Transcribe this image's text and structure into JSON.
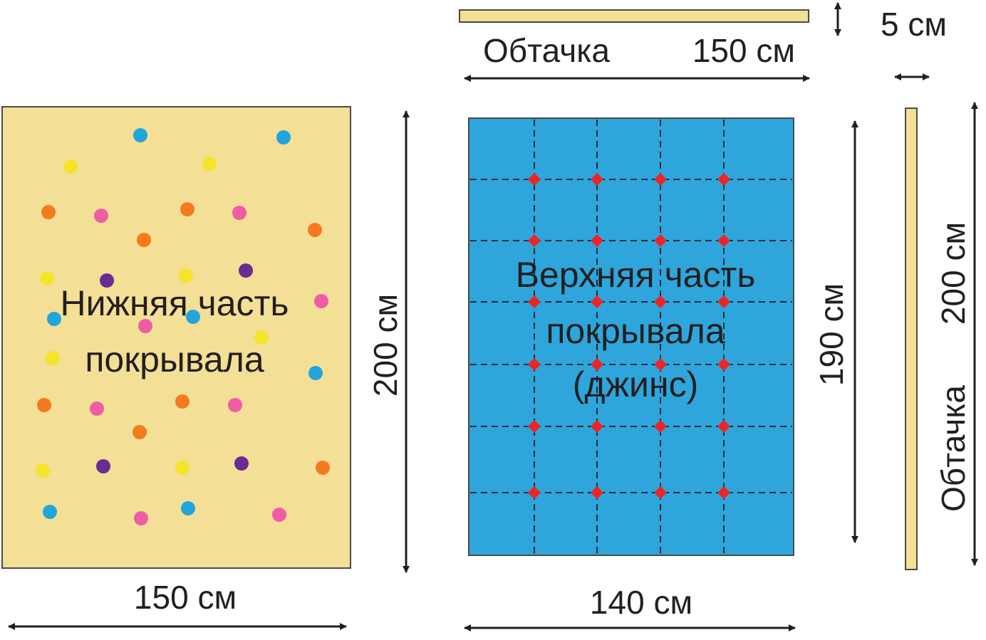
{
  "labels": {
    "bottom_part": [
      "Нижняя часть",
      "покрывала"
    ],
    "top_part": [
      "Верхняя часть",
      "покрывала",
      "(джинс)"
    ],
    "binding_top": "Обтачка",
    "binding_side": "Обтачка",
    "dim_bottom_width": "150 см",
    "dim_bottom_height": "200 см",
    "dim_top_width": "140 см",
    "dim_top_height": "190 см",
    "dim_binding_length": "150 см",
    "dim_binding_width": "5 см",
    "dim_binding_side_length": "200 см"
  },
  "colors": {
    "bottom_fabric": "#f3df96",
    "top_fabric": "#2ea6dc",
    "binding_fabric": "#f3df96",
    "outline": "#4a4a4a",
    "text": "#231f20",
    "seam_line": "#1a2a3a",
    "tack_marks": "#ee2424",
    "dots": [
      "#22a5dc",
      "#f5e42a",
      "#f47a20",
      "#ee5da4",
      "#6a2c91"
    ]
  },
  "icons": {
    "tack_mark": "red-diamond-icon",
    "dimension_arrow": "double-arrow-icon",
    "polka_dot": "dot-icon"
  }
}
